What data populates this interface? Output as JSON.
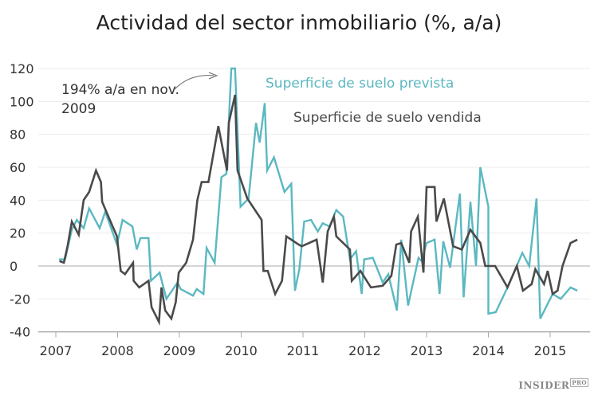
{
  "chart_data": {
    "type": "line",
    "title": "Actividad del sector inmobiliario (%, a/a)",
    "xlabel": "",
    "ylabel": "",
    "xlim": [
      2006.7,
      2015.7
    ],
    "ylim": [
      -40,
      120
    ],
    "grid": true,
    "yticks": [
      -40,
      -20,
      0,
      20,
      40,
      60,
      80,
      100,
      120
    ],
    "xticks": [
      2007,
      2008,
      2009,
      2010,
      2011,
      2012,
      2013,
      2014,
      2015
    ],
    "legend_placement": "top-center (inline labels)",
    "annotation": {
      "line1": "194% a/a en nov.",
      "line2": "2009",
      "points_to": [
        2009.84,
        120
      ]
    },
    "series": [
      {
        "name": "Superficie de suelo prevista",
        "color": "#5bb8c1",
        "points": [
          [
            2007.05,
            4
          ],
          [
            2007.15,
            4
          ],
          [
            2007.26,
            22
          ],
          [
            2007.34,
            28
          ],
          [
            2007.45,
            23
          ],
          [
            2007.54,
            35
          ],
          [
            2007.71,
            23
          ],
          [
            2007.8,
            33
          ],
          [
            2007.99,
            13
          ],
          [
            2008.08,
            28
          ],
          [
            2008.24,
            24
          ],
          [
            2008.31,
            10
          ],
          [
            2008.37,
            17
          ],
          [
            2008.5,
            17
          ],
          [
            2008.54,
            -9
          ],
          [
            2008.68,
            -4
          ],
          [
            2008.79,
            -20
          ],
          [
            2008.97,
            -10
          ],
          [
            2009.02,
            -14
          ],
          [
            2009.22,
            -18
          ],
          [
            2009.28,
            -14
          ],
          [
            2009.39,
            -17
          ],
          [
            2009.44,
            11
          ],
          [
            2009.57,
            2
          ],
          [
            2009.68,
            54
          ],
          [
            2009.76,
            56
          ],
          [
            2009.84,
            120
          ],
          [
            2009.9,
            120
          ],
          [
            2009.99,
            36
          ],
          [
            2010.12,
            41
          ],
          [
            2010.24,
            87
          ],
          [
            2010.3,
            75
          ],
          [
            2010.38,
            99
          ],
          [
            2010.42,
            58
          ],
          [
            2010.53,
            66
          ],
          [
            2010.7,
            45
          ],
          [
            2010.81,
            50
          ],
          [
            2010.87,
            -15
          ],
          [
            2010.94,
            -2
          ],
          [
            2011.02,
            27
          ],
          [
            2011.13,
            28
          ],
          [
            2011.24,
            21
          ],
          [
            2011.32,
            26
          ],
          [
            2011.43,
            24
          ],
          [
            2011.54,
            34
          ],
          [
            2011.65,
            30
          ],
          [
            2011.76,
            4
          ],
          [
            2011.86,
            9
          ],
          [
            2011.95,
            -17
          ],
          [
            2011.99,
            4
          ],
          [
            2012.13,
            5
          ],
          [
            2012.29,
            -10
          ],
          [
            2012.38,
            -5
          ],
          [
            2012.52,
            -27
          ],
          [
            2012.59,
            16
          ],
          [
            2012.7,
            -24
          ],
          [
            2012.87,
            5
          ],
          [
            2012.92,
            3
          ],
          [
            2013.0,
            14
          ],
          [
            2013.13,
            16
          ],
          [
            2013.21,
            -17
          ],
          [
            2013.27,
            15
          ],
          [
            2013.38,
            -1
          ],
          [
            2013.54,
            44
          ],
          [
            2013.6,
            -19
          ],
          [
            2013.71,
            39
          ],
          [
            2013.8,
            0
          ],
          [
            2013.87,
            60
          ],
          [
            2014.0,
            36
          ],
          [
            2014.0,
            -29
          ],
          [
            2014.12,
            -28
          ],
          [
            2014.31,
            -13
          ],
          [
            2014.55,
            8
          ],
          [
            2014.66,
            0
          ],
          [
            2014.78,
            41
          ],
          [
            2014.84,
            -32
          ],
          [
            2015.04,
            -17
          ],
          [
            2015.17,
            -20
          ],
          [
            2015.33,
            -13
          ],
          [
            2015.44,
            -15
          ]
        ]
      },
      {
        "name": "Superficie de suelo vendida",
        "color": "#4a4a4a",
        "points": [
          [
            2007.06,
            3
          ],
          [
            2007.13,
            2
          ],
          [
            2007.19,
            12
          ],
          [
            2007.26,
            27
          ],
          [
            2007.37,
            19
          ],
          [
            2007.45,
            40
          ],
          [
            2007.54,
            45
          ],
          [
            2007.65,
            58
          ],
          [
            2007.73,
            51
          ],
          [
            2007.75,
            39
          ],
          [
            2007.84,
            31
          ],
          [
            2007.99,
            18
          ],
          [
            2008.05,
            -3
          ],
          [
            2008.12,
            -5
          ],
          [
            2008.25,
            2
          ],
          [
            2008.26,
            -9
          ],
          [
            2008.35,
            -13
          ],
          [
            2008.5,
            -9
          ],
          [
            2008.55,
            -25
          ],
          [
            2008.67,
            -34
          ],
          [
            2008.71,
            -13
          ],
          [
            2008.77,
            -27
          ],
          [
            2008.87,
            -32
          ],
          [
            2008.94,
            -22
          ],
          [
            2008.99,
            -4
          ],
          [
            2009.11,
            2
          ],
          [
            2009.22,
            16
          ],
          [
            2009.29,
            40
          ],
          [
            2009.36,
            51
          ],
          [
            2009.47,
            51
          ],
          [
            2009.63,
            85
          ],
          [
            2009.77,
            58
          ],
          [
            2009.8,
            87
          ],
          [
            2009.9,
            104
          ],
          [
            2009.94,
            58
          ],
          [
            2010.1,
            41
          ],
          [
            2010.33,
            28
          ],
          [
            2010.36,
            -3
          ],
          [
            2010.43,
            -3
          ],
          [
            2010.55,
            -17
          ],
          [
            2010.66,
            -9
          ],
          [
            2010.73,
            18
          ],
          [
            2010.93,
            13
          ],
          [
            2010.98,
            12
          ],
          [
            2011.22,
            16
          ],
          [
            2011.32,
            -10
          ],
          [
            2011.4,
            21
          ],
          [
            2011.5,
            30
          ],
          [
            2011.54,
            18
          ],
          [
            2011.76,
            10
          ],
          [
            2011.79,
            -9
          ],
          [
            2011.93,
            -3
          ],
          [
            2012.1,
            -13
          ],
          [
            2012.29,
            -12
          ],
          [
            2012.43,
            -6
          ],
          [
            2012.51,
            13
          ],
          [
            2012.59,
            14
          ],
          [
            2012.72,
            2
          ],
          [
            2012.75,
            21
          ],
          [
            2012.86,
            30
          ],
          [
            2012.95,
            -4
          ],
          [
            2013.0,
            48
          ],
          [
            2013.13,
            48
          ],
          [
            2013.16,
            27
          ],
          [
            2013.28,
            41
          ],
          [
            2013.43,
            12
          ],
          [
            2013.57,
            10
          ],
          [
            2013.71,
            22
          ],
          [
            2013.87,
            14
          ],
          [
            2013.95,
            0
          ],
          [
            2014.11,
            0
          ],
          [
            2014.31,
            -13
          ],
          [
            2014.46,
            0
          ],
          [
            2014.56,
            -15
          ],
          [
            2014.7,
            -11
          ],
          [
            2014.76,
            -2
          ],
          [
            2014.9,
            -11
          ],
          [
            2014.96,
            -3
          ],
          [
            2015.04,
            -17
          ],
          [
            2015.12,
            -15
          ],
          [
            2015.2,
            0
          ],
          [
            2015.33,
            14
          ],
          [
            2015.44,
            16
          ]
        ]
      }
    ]
  },
  "branding": {
    "logo_main": "INSIDER",
    "logo_sup": "PRO"
  }
}
